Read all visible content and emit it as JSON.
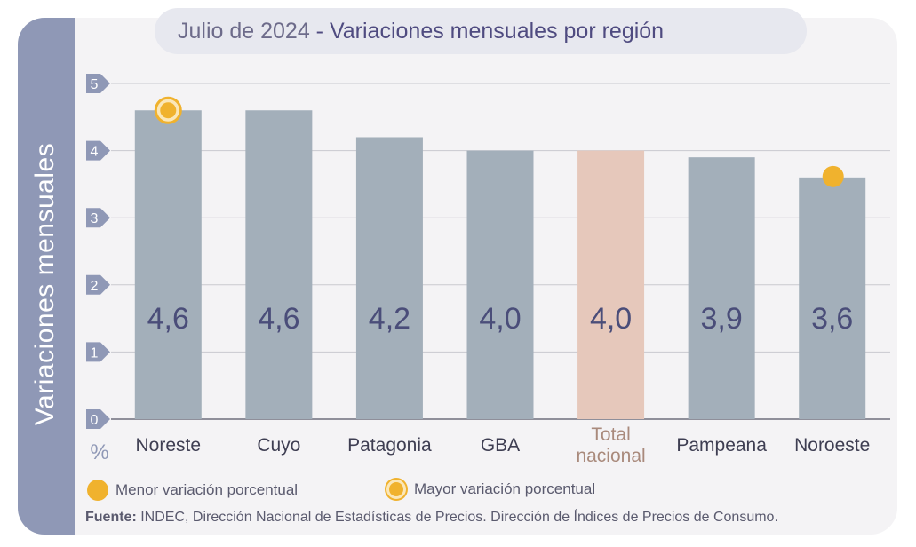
{
  "title": {
    "prefix": "Julio de 2024",
    "separator": " - ",
    "main": "Variaciones mensuales por región"
  },
  "y_axis_label": "Variaciones  mensuales",
  "unit_label": "%",
  "legend": {
    "min_label": "Menor variación porcentual",
    "max_label": "Mayor variación porcentual"
  },
  "source": {
    "label": "Fuente:",
    "text": " INDEC, Dirección Nacional de Estadísticas de Precios. Dirección de Índices de Precios de Consumo."
  },
  "colors": {
    "bar": "#a3afba",
    "national_bar": "#e6c8bb",
    "bar_value_text": "#4a4d79",
    "national_label": "#a98a7c",
    "marker": "#f0b22e",
    "tick_badge": "#8f98b6"
  },
  "chart_data": {
    "type": "bar",
    "categories": [
      "Noreste",
      "Cuyo",
      "Patagonia",
      "GBA",
      "Total nacional",
      "Pampeana",
      "Noroeste"
    ],
    "values": [
      4.6,
      4.6,
      4.2,
      4.0,
      4.0,
      3.9,
      3.6
    ],
    "value_labels": [
      "4,6",
      "4,6",
      "4,2",
      "4,0",
      "4,0",
      "3,9",
      "3,6"
    ],
    "highlight_index": 4,
    "max_marker_index": 0,
    "min_marker_index": 6,
    "ylim": [
      0,
      5
    ],
    "yticks": [
      "0",
      "1",
      "2",
      "3",
      "4",
      "5"
    ],
    "grid": true
  }
}
